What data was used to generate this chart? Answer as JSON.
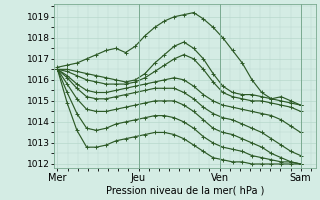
{
  "bg_color": "#d4ece4",
  "grid_color": "#b8d8cc",
  "line_color": "#2d5a27",
  "xlabel": "Pression niveau de la mer( hPa )",
  "yticks": [
    1012,
    1013,
    1014,
    1015,
    1016,
    1017,
    1018,
    1019
  ],
  "ylim": [
    1011.8,
    1019.6
  ],
  "xtick_labels": [
    "Mer",
    "Jeu",
    "Ven",
    "Sam"
  ],
  "xtick_positions": [
    0,
    8,
    16,
    24
  ],
  "xlim": [
    -0.3,
    25.5
  ],
  "lines": [
    [
      1016.6,
      1016.7,
      1016.8,
      1017.0,
      1017.2,
      1017.4,
      1017.5,
      1017.3,
      1017.6,
      1018.1,
      1018.5,
      1018.8,
      1019.0,
      1019.1,
      1019.2,
      1018.9,
      1018.5,
      1018.0,
      1017.4,
      1016.8,
      1016.0,
      1015.4,
      1015.1,
      1015.2,
      1015.0,
      1014.8
    ],
    [
      1016.5,
      1016.5,
      1016.4,
      1016.3,
      1016.2,
      1016.1,
      1016.0,
      1015.9,
      1016.0,
      1016.3,
      1016.8,
      1017.2,
      1017.6,
      1017.8,
      1017.5,
      1017.0,
      1016.3,
      1015.7,
      1015.4,
      1015.3,
      1015.3,
      1015.2,
      1015.1,
      1015.0,
      1014.9,
      1014.8
    ],
    [
      1016.5,
      1016.4,
      1016.2,
      1016.0,
      1015.9,
      1015.8,
      1015.8,
      1015.8,
      1015.9,
      1016.1,
      1016.4,
      1016.7,
      1017.0,
      1017.2,
      1017.0,
      1016.5,
      1015.9,
      1015.4,
      1015.2,
      1015.1,
      1015.0,
      1015.0,
      1014.9,
      1014.8,
      1014.7,
      1014.5
    ],
    [
      1016.5,
      1016.2,
      1015.8,
      1015.5,
      1015.4,
      1015.4,
      1015.5,
      1015.6,
      1015.7,
      1015.8,
      1015.9,
      1016.0,
      1016.1,
      1016.0,
      1015.7,
      1015.3,
      1015.0,
      1014.8,
      1014.7,
      1014.6,
      1014.5,
      1014.4,
      1014.3,
      1014.1,
      1013.8,
      1013.5
    ],
    [
      1016.5,
      1016.1,
      1015.6,
      1015.2,
      1015.1,
      1015.1,
      1015.2,
      1015.3,
      1015.4,
      1015.5,
      1015.6,
      1015.6,
      1015.6,
      1015.4,
      1015.1,
      1014.7,
      1014.4,
      1014.2,
      1014.1,
      1013.9,
      1013.7,
      1013.5,
      1013.2,
      1012.9,
      1012.6,
      1012.4
    ],
    [
      1016.5,
      1015.8,
      1015.1,
      1014.6,
      1014.5,
      1014.5,
      1014.6,
      1014.7,
      1014.8,
      1014.9,
      1015.0,
      1015.0,
      1015.0,
      1014.8,
      1014.5,
      1014.1,
      1013.7,
      1013.5,
      1013.4,
      1013.2,
      1013.0,
      1012.8,
      1012.5,
      1012.3,
      1012.1,
      1012.0
    ],
    [
      1016.5,
      1015.4,
      1014.4,
      1013.7,
      1013.6,
      1013.7,
      1013.9,
      1014.0,
      1014.1,
      1014.2,
      1014.3,
      1014.3,
      1014.2,
      1014.0,
      1013.7,
      1013.3,
      1013.0,
      1012.8,
      1012.7,
      1012.6,
      1012.4,
      1012.3,
      1012.2,
      1012.1,
      1012.1,
      1012.0
    ],
    [
      1016.5,
      1014.9,
      1013.6,
      1012.8,
      1012.8,
      1012.9,
      1013.1,
      1013.2,
      1013.3,
      1013.4,
      1013.5,
      1013.5,
      1013.4,
      1013.2,
      1012.9,
      1012.6,
      1012.3,
      1012.2,
      1012.1,
      1012.1,
      1012.0,
      1012.0,
      1012.0,
      1012.0,
      1012.0,
      1012.0
    ]
  ]
}
